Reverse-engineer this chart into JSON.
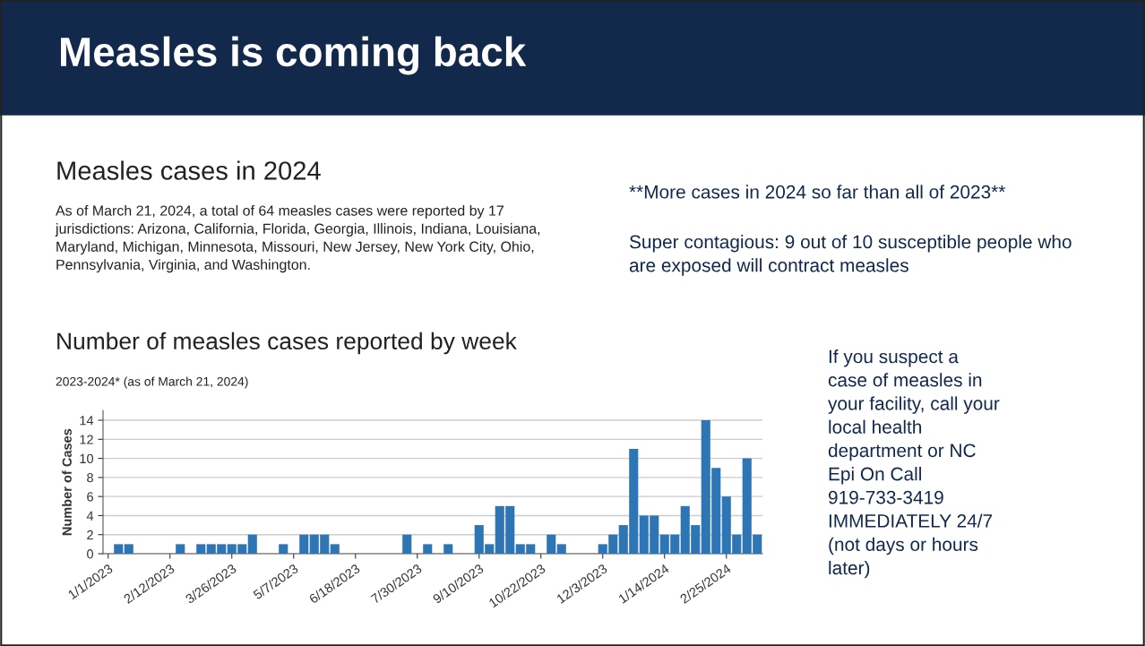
{
  "chart_data": {
    "type": "bar",
    "title": "Number of measles cases reported by week",
    "subtitle": "2023-2024* (as of March 21, 2024)",
    "ylabel": "Number of Cases",
    "annotations": [
      "Measles is coming back",
      "Measles cases in 2024",
      "As of March 21, 2024, a total of 64 measles cases were reported by 17 jurisdictions: Arizona, California, Florida, Georgia, Illinois, Indiana, Louisiana, Maryland, Michigan, Minnesota, Missouri, New Jersey, New York City, Ohio, Pennsylvania, Virginia, and Washington.",
      "**More cases in 2024 so far than all of 2023**",
      "Super contagious: 9 out of 10 susceptible people who are exposed will contract measles",
      "If you suspect a case of measles in your facility, call your local health department or NC Epi On Call 919-733-3419 IMMEDIATELY 24/7 (not days or hours later)"
    ],
    "categories": [
      "1/1/2023",
      null,
      null,
      null,
      null,
      null,
      "2/12/2023",
      null,
      null,
      null,
      null,
      null,
      "3/26/2023",
      null,
      null,
      null,
      null,
      null,
      "5/7/2023",
      null,
      null,
      null,
      null,
      null,
      "6/18/2023",
      null,
      null,
      null,
      null,
      null,
      "7/30/2023",
      null,
      null,
      null,
      null,
      null,
      "9/10/2023",
      null,
      null,
      null,
      null,
      null,
      "10/22/2023",
      null,
      null,
      null,
      null,
      null,
      "12/3/2023",
      null,
      null,
      null,
      null,
      null,
      "1/14/2024",
      null,
      null,
      null,
      null,
      null,
      "2/25/2024",
      null,
      null,
      null
    ],
    "values": [
      0,
      1,
      1,
      0,
      0,
      0,
      0,
      1,
      0,
      1,
      1,
      1,
      1,
      1,
      2,
      0,
      0,
      1,
      0,
      2,
      2,
      2,
      1,
      0,
      0,
      0,
      0,
      0,
      0,
      2,
      0,
      1,
      0,
      1,
      0,
      0,
      3,
      1,
      5,
      5,
      1,
      1,
      0,
      2,
      1,
      0,
      0,
      0,
      1,
      2,
      3,
      11,
      4,
      4,
      2,
      2,
      5,
      3,
      14,
      9,
      6,
      2,
      10,
      2
    ],
    "color": "#2e75b6",
    "ylim": [
      0,
      15
    ],
    "yticks": [
      0,
      2,
      4,
      6,
      8,
      10,
      12,
      14
    ],
    "grid": "y"
  }
}
